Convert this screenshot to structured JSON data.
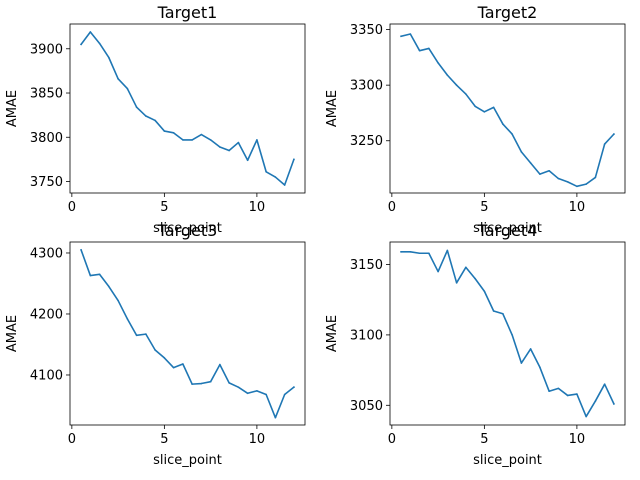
{
  "chart_data": [
    {
      "type": "line",
      "title": "Target1",
      "xlabel": "slice_point",
      "ylabel": "AMAE",
      "xlim": [
        -0.1,
        12.6
      ],
      "ylim": [
        3737,
        3928
      ],
      "xticks": [
        0,
        5,
        10
      ],
      "yticks": [
        3750,
        3800,
        3850,
        3900
      ],
      "grid": false,
      "color": "#1f77b4",
      "series": [
        {
          "x": [
            0.5,
            1.0,
            1.5,
            2.0,
            2.5,
            3.0,
            3.5,
            4.0,
            4.5,
            5.0,
            5.5,
            6.0,
            6.5,
            7.0,
            7.5,
            8.0,
            8.5,
            9.0,
            9.5,
            10.0,
            10.5,
            11.0,
            11.5,
            12.0
          ],
          "y": [
            3905,
            3919,
            3906,
            3890,
            3866,
            3855,
            3834,
            3824,
            3819,
            3807,
            3805,
            3797,
            3797,
            3803,
            3797,
            3789,
            3785,
            3794,
            3774,
            3797,
            3761,
            3755,
            3746,
            3775
          ]
        }
      ]
    },
    {
      "type": "line",
      "title": "Target2",
      "xlabel": "slice_point",
      "ylabel": "AMAE",
      "xlim": [
        -0.1,
        12.6
      ],
      "ylim": [
        3203,
        3355
      ],
      "xticks": [
        0,
        5,
        10
      ],
      "yticks": [
        3250,
        3300,
        3350
      ],
      "grid": false,
      "color": "#1f77b4",
      "series": [
        {
          "x": [
            0.5,
            1.0,
            1.5,
            2.0,
            2.5,
            3.0,
            3.5,
            4.0,
            4.5,
            5.0,
            5.5,
            6.0,
            6.5,
            7.0,
            7.5,
            8.0,
            8.5,
            9.0,
            9.5,
            10.0,
            10.5,
            11.0,
            11.5,
            12.0
          ],
          "y": [
            3344,
            3346,
            3331,
            3333,
            3320,
            3309,
            3300,
            3292,
            3281,
            3276,
            3280,
            3265,
            3256,
            3240,
            3230,
            3220,
            3223,
            3216,
            3213,
            3209,
            3211,
            3217,
            3247,
            3256
          ]
        }
      ]
    },
    {
      "type": "line",
      "title": "Target3",
      "xlabel": "slice_point",
      "ylabel": "AMAE",
      "xlim": [
        -0.1,
        12.6
      ],
      "ylim": [
        4018,
        4318
      ],
      "xticks": [
        0,
        5,
        10
      ],
      "yticks": [
        4100,
        4200,
        4300
      ],
      "grid": false,
      "color": "#1f77b4",
      "series": [
        {
          "x": [
            0.5,
            1.0,
            1.5,
            2.0,
            2.5,
            3.0,
            3.5,
            4.0,
            4.5,
            5.0,
            5.5,
            6.0,
            6.5,
            7.0,
            7.5,
            8.0,
            8.5,
            9.0,
            9.5,
            10.0,
            10.5,
            11.0,
            11.5,
            12.0
          ],
          "y": [
            4305,
            4263,
            4265,
            4245,
            4222,
            4192,
            4165,
            4167,
            4141,
            4128,
            4112,
            4118,
            4085,
            4086,
            4089,
            4117,
            4087,
            4080,
            4070,
            4074,
            4068,
            4030,
            4068,
            4080
          ]
        }
      ]
    },
    {
      "type": "line",
      "title": "Target4",
      "xlabel": "slice_point",
      "ylabel": "AMAE",
      "xlim": [
        -0.1,
        12.6
      ],
      "ylim": [
        3036,
        3166
      ],
      "xticks": [
        0,
        5,
        10
      ],
      "yticks": [
        3050,
        3100,
        3150
      ],
      "grid": false,
      "color": "#1f77b4",
      "series": [
        {
          "x": [
            0.5,
            1.0,
            1.5,
            2.0,
            2.5,
            3.0,
            3.5,
            4.0,
            4.5,
            5.0,
            5.5,
            6.0,
            6.5,
            7.0,
            7.5,
            8.0,
            8.5,
            9.0,
            9.5,
            10.0,
            10.5,
            11.0,
            11.5,
            12.0
          ],
          "y": [
            3159,
            3159,
            3158,
            3158,
            3145,
            3160,
            3137,
            3148,
            3140,
            3131,
            3117,
            3115,
            3100,
            3080,
            3090,
            3077,
            3060,
            3062,
            3057,
            3058,
            3042,
            3053,
            3065,
            3051
          ]
        }
      ]
    }
  ]
}
